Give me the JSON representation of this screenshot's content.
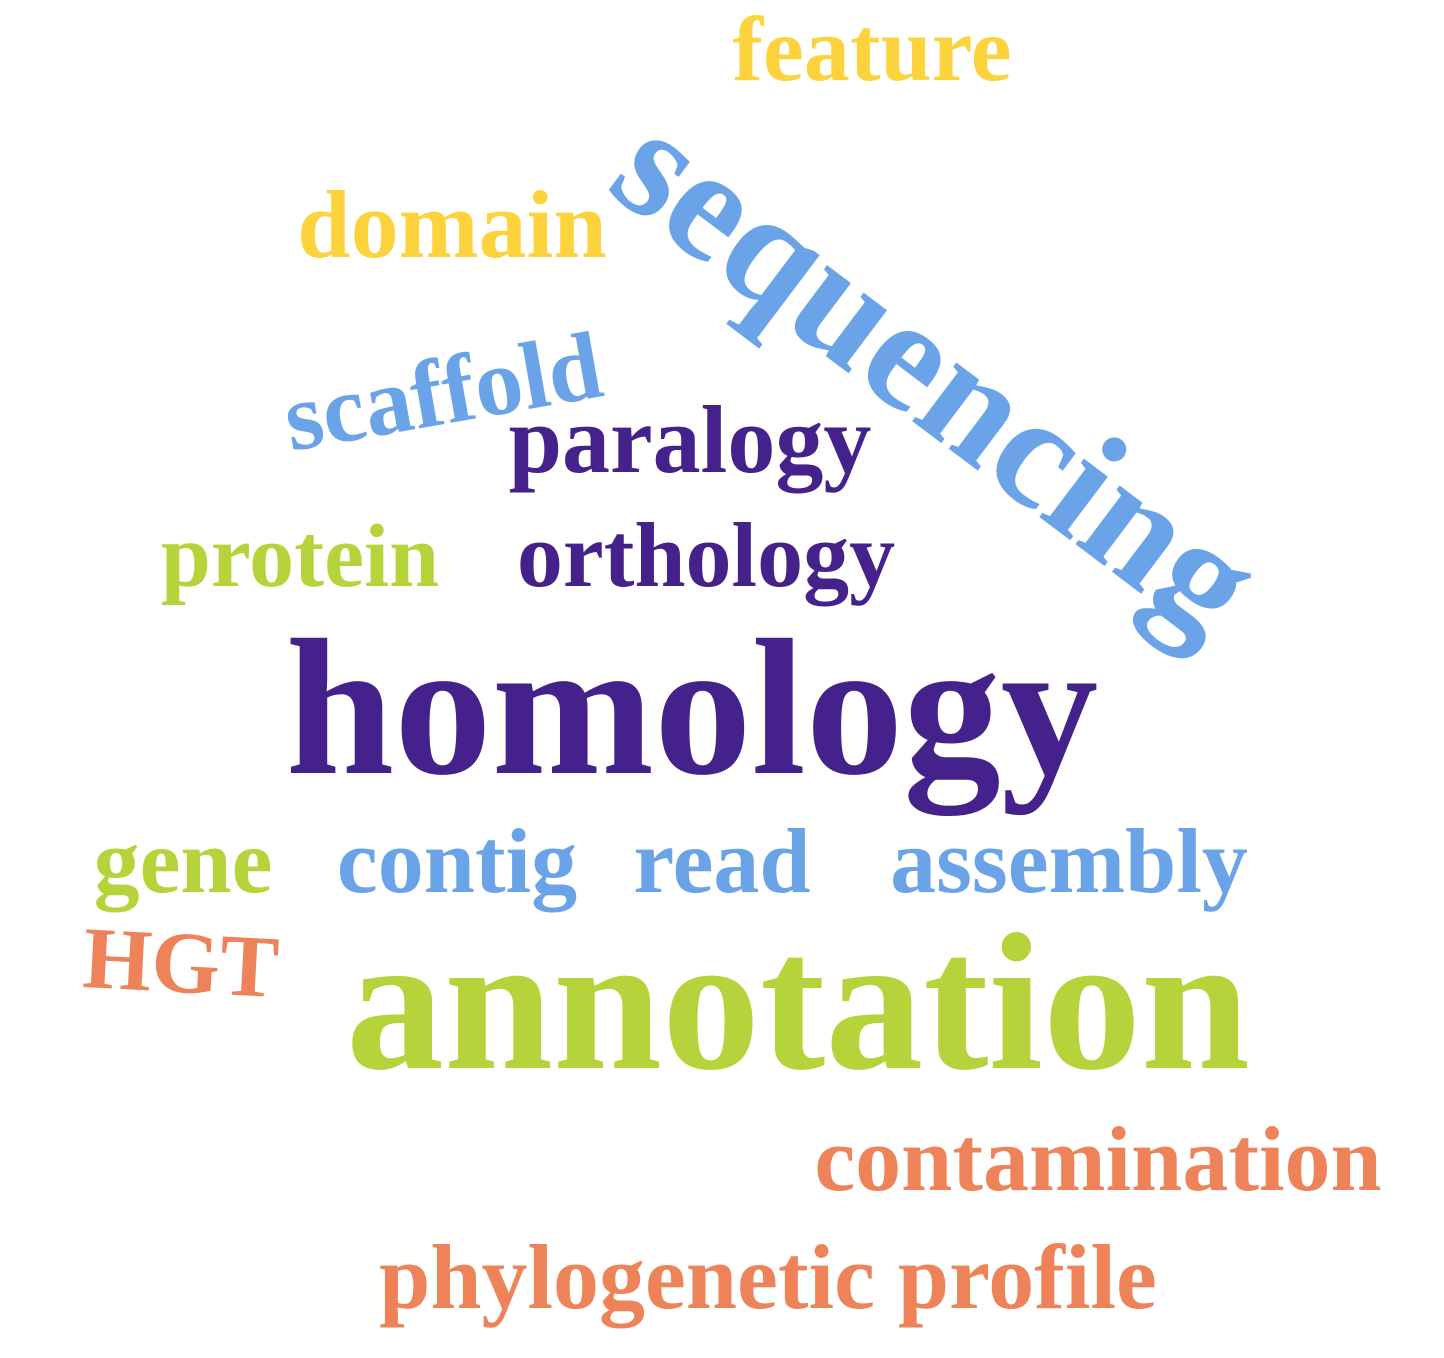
{
  "palette": {
    "yellow": "#fdd33d",
    "blue": "#6ba3e8",
    "purple": "#45218b",
    "green": "#b5d33b",
    "orange": "#ee8359"
  },
  "words": [
    {
      "key": "sequencing",
      "text": "sequencing",
      "color": "blue",
      "rotation_deg": 37
    },
    {
      "key": "feature",
      "text": "feature",
      "color": "yellow",
      "rotation_deg": 0
    },
    {
      "key": "domain",
      "text": "domain",
      "color": "yellow",
      "rotation_deg": 0
    },
    {
      "key": "scaffold",
      "text": "scaffold",
      "color": "blue",
      "rotation_deg": -10
    },
    {
      "key": "paralogy",
      "text": "paralogy",
      "color": "purple",
      "rotation_deg": 0
    },
    {
      "key": "protein",
      "text": "protein",
      "color": "green",
      "rotation_deg": 0
    },
    {
      "key": "orthology",
      "text": "orthology",
      "color": "purple",
      "rotation_deg": 0
    },
    {
      "key": "homology",
      "text": "homology",
      "color": "purple",
      "rotation_deg": 0
    },
    {
      "key": "gene",
      "text": "gene",
      "color": "green",
      "rotation_deg": 0
    },
    {
      "key": "contig",
      "text": "contig",
      "color": "blue",
      "rotation_deg": 0
    },
    {
      "key": "read",
      "text": "read",
      "color": "blue",
      "rotation_deg": 0
    },
    {
      "key": "assembly",
      "text": "assembly",
      "color": "blue",
      "rotation_deg": 0
    },
    {
      "key": "hgt",
      "text": "HGT",
      "color": "orange",
      "rotation_deg": 3
    },
    {
      "key": "annotation",
      "text": "annotation",
      "color": "green",
      "rotation_deg": 0
    },
    {
      "key": "contamination",
      "text": "contamination",
      "color": "orange",
      "rotation_deg": 0
    },
    {
      "key": "phylogenetic_profile",
      "text": "phylogenetic profile",
      "color": "orange",
      "rotation_deg": 0
    }
  ]
}
